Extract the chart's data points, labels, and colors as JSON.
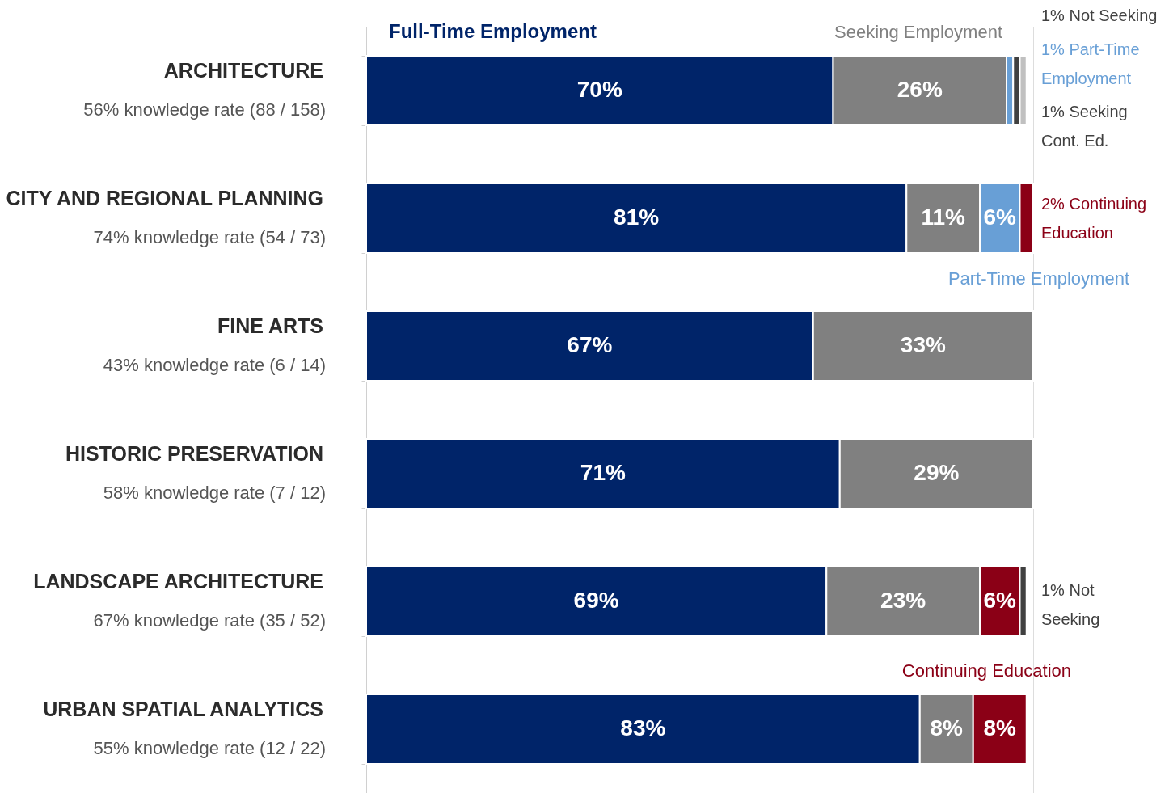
{
  "chart_data": {
    "type": "bar",
    "orientation": "horizontal",
    "stacked": true,
    "legend": false,
    "grid": false,
    "categories": [
      "ARCHITECTURE",
      "CITY AND REGIONAL PLANNING",
      "FINE ARTS",
      "HISTORIC PRESERVATION",
      "LANDSCAPE ARCHITECTURE",
      "URBAN SPATIAL ANALYTICS"
    ],
    "series": [
      {
        "name": "Full-Time Employment",
        "color": "#002469",
        "values": [
          70,
          81,
          67,
          71,
          69,
          83
        ],
        "value_labels": [
          "70%",
          "81%",
          "67%",
          "71%",
          "69%",
          "83%"
        ]
      },
      {
        "name": "Seeking Employment",
        "color": "#808080",
        "values": [
          26,
          11,
          33,
          29,
          23,
          8
        ],
        "value_labels": [
          "26%",
          "11%",
          "33%",
          "29%",
          "23%",
          "8%"
        ]
      },
      {
        "name": "Part-Time Employment",
        "color": "#689fd6",
        "values": [
          1,
          6,
          null,
          null,
          null,
          null
        ],
        "value_labels": [
          null,
          "6%",
          null,
          null,
          null,
          null
        ]
      },
      {
        "name": "Continuing Education",
        "color": "#8b0016",
        "values": [
          null,
          2,
          null,
          null,
          6,
          8
        ],
        "value_labels": [
          null,
          null,
          null,
          null,
          "6%",
          "8%"
        ]
      },
      {
        "color": "#404040",
        "values": [
          1,
          null,
          null,
          null,
          1,
          null
        ]
      },
      {
        "color": "#c0c0c0",
        "values": [
          1,
          null,
          null,
          null,
          null,
          null
        ]
      }
    ],
    "annotations": [
      "56% knowledge rate (88 / 158)",
      "74% knowledge rate (54 / 73)",
      "43% knowledge rate (6 / 14)",
      "58% knowledge rate (7 / 12)",
      "67% knowledge rate (35 / 52)",
      "55% knowledge rate (12 / 22)",
      "1% Not Seeking",
      "1% Part-Time Employment",
      "1% Seeking Cont. Ed.",
      "2% Continuing Education",
      "1% Not Seeking"
    ]
  }
}
